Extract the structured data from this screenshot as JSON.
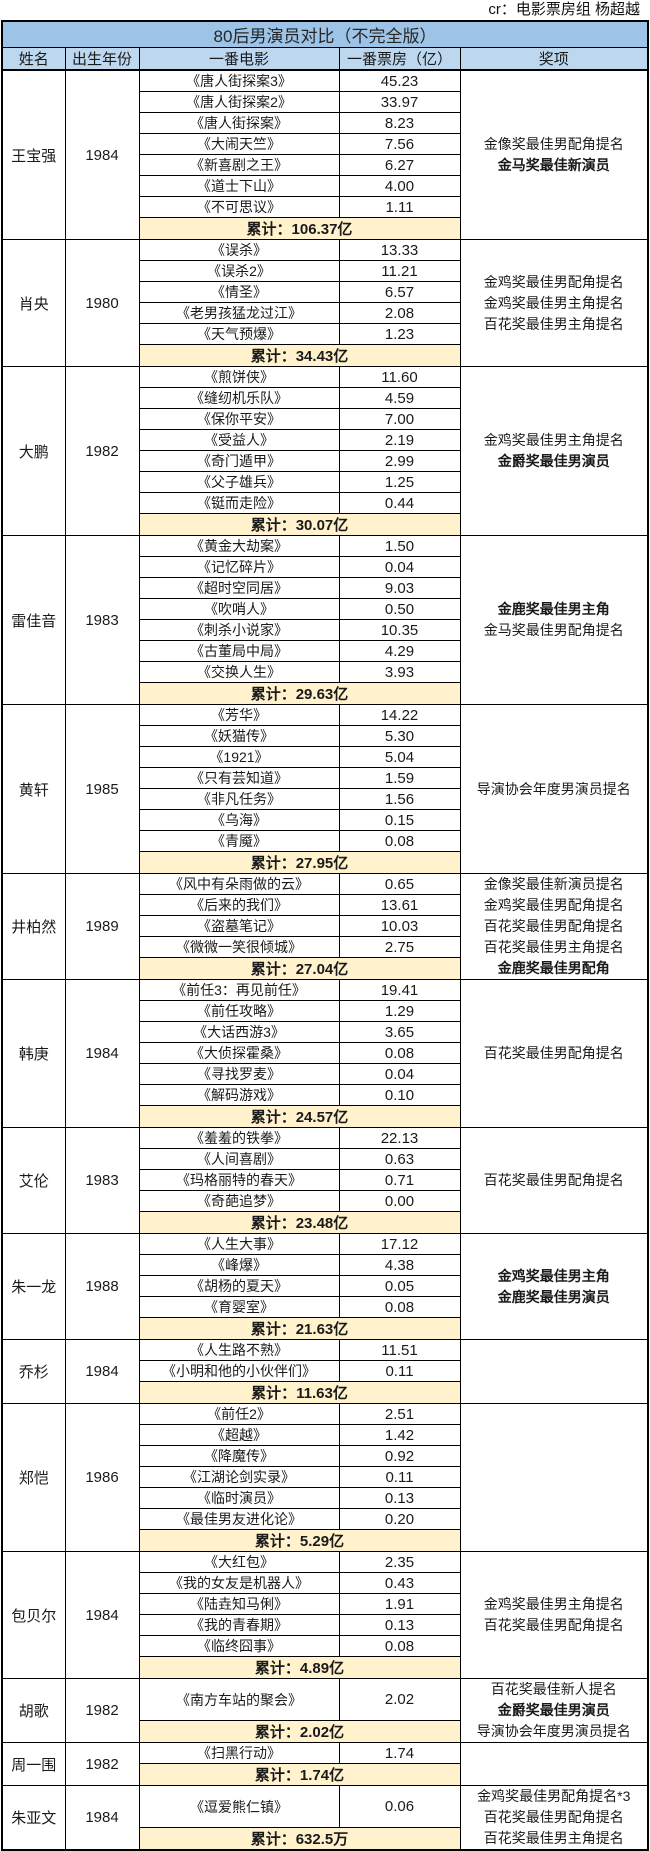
{
  "credit": "cr：电影票房组 杨超越",
  "colors": {
    "title_bg": "#9DC3E6",
    "header_bg": "#BDD7EE",
    "total_row_bg": "#FFF2CC",
    "border": "#000000",
    "text": "#1A1A1A"
  },
  "chart_data": {
    "type": "table",
    "title": "80后男演员对比（不完全版）",
    "columns": [
      "姓名",
      "出生年份",
      "一番电影",
      "一番票房（亿）",
      "奖项"
    ],
    "total_label": "累计：",
    "actors": [
      {
        "name": "王宝强",
        "year": "1984",
        "total": "106.37亿",
        "movies": [
          {
            "title": "《唐人街探案3》",
            "gross": "45.23"
          },
          {
            "title": "《唐人街探案2》",
            "gross": "33.97"
          },
          {
            "title": "《唐人街探案》",
            "gross": "8.23"
          },
          {
            "title": "《大闹天竺》",
            "gross": "7.56"
          },
          {
            "title": "《新喜剧之王》",
            "gross": "6.27"
          },
          {
            "title": "《道士下山》",
            "gross": "4.00"
          },
          {
            "title": "《不可思议》",
            "gross": "1.11"
          }
        ],
        "awards": [
          {
            "text": "金像奖最佳男配角提名",
            "bold": false
          },
          {
            "text": "金马奖最佳新演员",
            "bold": true
          }
        ]
      },
      {
        "name": "肖央",
        "year": "1980",
        "total": "34.43亿",
        "movies": [
          {
            "title": "《误杀》",
            "gross": "13.33"
          },
          {
            "title": "《误杀2》",
            "gross": "11.21"
          },
          {
            "title": "《情圣》",
            "gross": "6.57"
          },
          {
            "title": "《老男孩猛龙过江》",
            "gross": "2.08"
          },
          {
            "title": "《天气预爆》",
            "gross": "1.23"
          }
        ],
        "awards": [
          {
            "text": "金鸡奖最佳男配角提名",
            "bold": false
          },
          {
            "text": "金鸡奖最佳男主角提名",
            "bold": false
          },
          {
            "text": "百花奖最佳男主角提名",
            "bold": false
          }
        ]
      },
      {
        "name": "大鹏",
        "year": "1982",
        "total": "30.07亿",
        "movies": [
          {
            "title": "《煎饼侠》",
            "gross": "11.60"
          },
          {
            "title": "《缝纫机乐队》",
            "gross": "4.59"
          },
          {
            "title": "《保你平安》",
            "gross": "7.00"
          },
          {
            "title": "《受益人》",
            "gross": "2.19"
          },
          {
            "title": "《奇门遁甲》",
            "gross": "2.99"
          },
          {
            "title": "《父子雄兵》",
            "gross": "1.25"
          },
          {
            "title": "《铤而走险》",
            "gross": "0.44"
          }
        ],
        "awards": [
          {
            "text": "金鸡奖最佳男主角提名",
            "bold": false
          },
          {
            "text": "金爵奖最佳男演员",
            "bold": true
          }
        ]
      },
      {
        "name": "雷佳音",
        "year": "1983",
        "total": "29.63亿",
        "movies": [
          {
            "title": "《黄金大劫案》",
            "gross": "1.50"
          },
          {
            "title": "《记忆碎片》",
            "gross": "0.04"
          },
          {
            "title": "《超时空同居》",
            "gross": "9.03"
          },
          {
            "title": "《吹哨人》",
            "gross": "0.50"
          },
          {
            "title": "《刺杀小说家》",
            "gross": "10.35"
          },
          {
            "title": "《古董局中局》",
            "gross": "4.29"
          },
          {
            "title": "《交换人生》",
            "gross": "3.93"
          }
        ],
        "awards": [
          {
            "text": "金鹿奖最佳男主角",
            "bold": true
          },
          {
            "text": "金马奖最佳男配角提名",
            "bold": false
          }
        ]
      },
      {
        "name": "黄轩",
        "year": "1985",
        "total": "27.95亿",
        "movies": [
          {
            "title": "《芳华》",
            "gross": "14.22"
          },
          {
            "title": "《妖猫传》",
            "gross": "5.30"
          },
          {
            "title": "《1921》",
            "gross": "5.04"
          },
          {
            "title": "《只有芸知道》",
            "gross": "1.59"
          },
          {
            "title": "《非凡任务》",
            "gross": "1.56"
          },
          {
            "title": "《乌海》",
            "gross": "0.15"
          },
          {
            "title": "《青魇》",
            "gross": "0.08"
          }
        ],
        "awards": [
          {
            "text": "导演协会年度男演员提名",
            "bold": false
          }
        ]
      },
      {
        "name": "井柏然",
        "year": "1989",
        "total": "27.04亿",
        "movies": [
          {
            "title": "《风中有朵雨做的云》",
            "gross": "0.65"
          },
          {
            "title": "《后来的我们》",
            "gross": "13.61"
          },
          {
            "title": "《盗墓笔记》",
            "gross": "10.03"
          },
          {
            "title": "《微微一笑很倾城》",
            "gross": "2.75"
          }
        ],
        "awards": [
          {
            "text": "金像奖最佳新演员提名",
            "bold": false
          },
          {
            "text": "金鸡奖最佳男配角提名",
            "bold": false
          },
          {
            "text": "百花奖最佳男配角提名",
            "bold": false
          },
          {
            "text": "百花奖最佳男主角提名",
            "bold": false
          },
          {
            "text": "金鹿奖最佳男配角",
            "bold": true
          }
        ]
      },
      {
        "name": "韩庚",
        "year": "1984",
        "total": "24.57亿",
        "movies": [
          {
            "title": "《前任3：再见前任》",
            "gross": "19.41"
          },
          {
            "title": "《前任攻略》",
            "gross": "1.29"
          },
          {
            "title": "《大话西游3》",
            "gross": "3.65"
          },
          {
            "title": "《大侦探霍桑》",
            "gross": "0.08"
          },
          {
            "title": "《寻找罗麦》",
            "gross": "0.04"
          },
          {
            "title": "《解码游戏》",
            "gross": "0.10"
          }
        ],
        "awards": [
          {
            "text": "百花奖最佳男配角提名",
            "bold": false
          }
        ]
      },
      {
        "name": "艾伦",
        "year": "1983",
        "total": "23.48亿",
        "movies": [
          {
            "title": "《羞羞的铁拳》",
            "gross": "22.13"
          },
          {
            "title": "《人间喜剧》",
            "gross": "0.63"
          },
          {
            "title": "《玛格丽特的春天》",
            "gross": "0.71"
          },
          {
            "title": "《奇葩追梦》",
            "gross": "0.00"
          }
        ],
        "awards": [
          {
            "text": "百花奖最佳男配角提名",
            "bold": false
          }
        ]
      },
      {
        "name": "朱一龙",
        "year": "1988",
        "total": "21.63亿",
        "movies": [
          {
            "title": "《人生大事》",
            "gross": "17.12"
          },
          {
            "title": "《峰爆》",
            "gross": "4.38"
          },
          {
            "title": "《胡杨的夏天》",
            "gross": "0.05"
          },
          {
            "title": "《育婴室》",
            "gross": "0.08"
          }
        ],
        "awards": [
          {
            "text": "金鸡奖最佳男主角",
            "bold": true
          },
          {
            "text": "金鹿奖最佳男演员",
            "bold": true
          }
        ]
      },
      {
        "name": "乔杉",
        "year": "1984",
        "total": "11.63亿",
        "movies": [
          {
            "title": "《人生路不熟》",
            "gross": "11.51"
          },
          {
            "title": "《小明和他的小伙伴们》",
            "gross": "0.11"
          }
        ],
        "awards": []
      },
      {
        "name": "郑恺",
        "year": "1986",
        "total": "5.29亿",
        "movies": [
          {
            "title": "《前任2》",
            "gross": "2.51"
          },
          {
            "title": "《超越》",
            "gross": "1.42"
          },
          {
            "title": "《降魔传》",
            "gross": "0.92"
          },
          {
            "title": "《江湖论剑实录》",
            "gross": "0.11"
          },
          {
            "title": "《临时演员》",
            "gross": "0.13"
          },
          {
            "title": "《最佳男友进化论》",
            "gross": "0.20"
          }
        ],
        "awards": []
      },
      {
        "name": "包贝尔",
        "year": "1984",
        "total": "4.89亿",
        "movies": [
          {
            "title": "《大红包》",
            "gross": "2.35"
          },
          {
            "title": "《我的女友是机器人》",
            "gross": "0.43"
          },
          {
            "title": "《陆垚知马俐》",
            "gross": "1.91"
          },
          {
            "title": "《我的青春期》",
            "gross": "0.13"
          },
          {
            "title": "《临终囧事》",
            "gross": "0.08"
          }
        ],
        "awards": [
          {
            "text": "金鸡奖最佳男主角提名",
            "bold": false
          },
          {
            "text": "百花奖最佳男配角提名",
            "bold": false
          }
        ]
      },
      {
        "name": "胡歌",
        "year": "1982",
        "total": "2.02亿",
        "movies": [
          {
            "title": "《南方车站的聚会》",
            "gross": "2.02"
          }
        ],
        "awards": [
          {
            "text": "百花奖最佳新人提名",
            "bold": false
          },
          {
            "text": "金爵奖最佳男演员",
            "bold": true
          },
          {
            "text": "导演协会年度男演员提名",
            "bold": false
          }
        ]
      },
      {
        "name": "周一围",
        "year": "1982",
        "total": "1.74亿",
        "movies": [
          {
            "title": "《扫黑行动》",
            "gross": "1.74"
          }
        ],
        "awards": []
      },
      {
        "name": "朱亚文",
        "year": "1984",
        "total": "632.5万",
        "movies": [
          {
            "title": "《逗爱熊仁镇》",
            "gross": "0.06"
          }
        ],
        "awards": [
          {
            "text": "金鸡奖最佳男配角提名*3",
            "bold": false
          },
          {
            "text": "百花奖最佳男配角提名",
            "bold": false
          },
          {
            "text": "百花奖最佳男主角提名",
            "bold": false
          }
        ]
      }
    ]
  }
}
